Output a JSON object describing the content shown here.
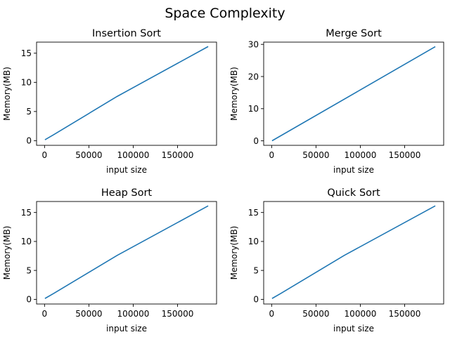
{
  "figure": {
    "title": "Space Complexity"
  },
  "colors": {
    "series": "#1f77b4"
  },
  "chart_data": [
    {
      "type": "line",
      "title": "Insertion Sort",
      "xlabel": "input size",
      "ylabel": "Memory(MB)",
      "xlim": [
        -9000,
        194000
      ],
      "ylim": [
        -0.8,
        16.9
      ],
      "xticks": [
        0,
        50000,
        100000,
        150000
      ],
      "yticks": [
        0,
        5,
        10,
        15
      ],
      "grid": false,
      "x": [
        1000,
        10000,
        82000,
        184000
      ],
      "y": [
        0.2,
        1.0,
        7.6,
        16.1
      ]
    },
    {
      "type": "line",
      "title": "Merge Sort",
      "xlabel": "input size",
      "ylabel": "Memory(MB)",
      "xlim": [
        -9000,
        194000
      ],
      "ylim": [
        -1.4,
        30.7
      ],
      "xticks": [
        0,
        50000,
        100000,
        150000
      ],
      "yticks": [
        0,
        10,
        20,
        30
      ],
      "grid": false,
      "x": [
        1000,
        184000
      ],
      "y": [
        0.1,
        29.2
      ]
    },
    {
      "type": "line",
      "title": "Heap Sort",
      "xlabel": "input size",
      "ylabel": "Memory(MB)",
      "xlim": [
        -9000,
        194000
      ],
      "ylim": [
        -0.8,
        16.9
      ],
      "xticks": [
        0,
        50000,
        100000,
        150000
      ],
      "yticks": [
        0,
        5,
        10,
        15
      ],
      "grid": false,
      "x": [
        1000,
        10000,
        82000,
        184000
      ],
      "y": [
        0.2,
        1.0,
        7.6,
        16.1
      ]
    },
    {
      "type": "line",
      "title": "Quick Sort",
      "xlabel": "input size",
      "ylabel": "Memory(MB)",
      "xlim": [
        -9000,
        194000
      ],
      "ylim": [
        -0.8,
        16.9
      ],
      "xticks": [
        0,
        50000,
        100000,
        150000
      ],
      "yticks": [
        0,
        5,
        10,
        15
      ],
      "grid": false,
      "x": [
        1000,
        10000,
        82000,
        184000
      ],
      "y": [
        0.2,
        1.0,
        7.6,
        16.1
      ]
    }
  ]
}
